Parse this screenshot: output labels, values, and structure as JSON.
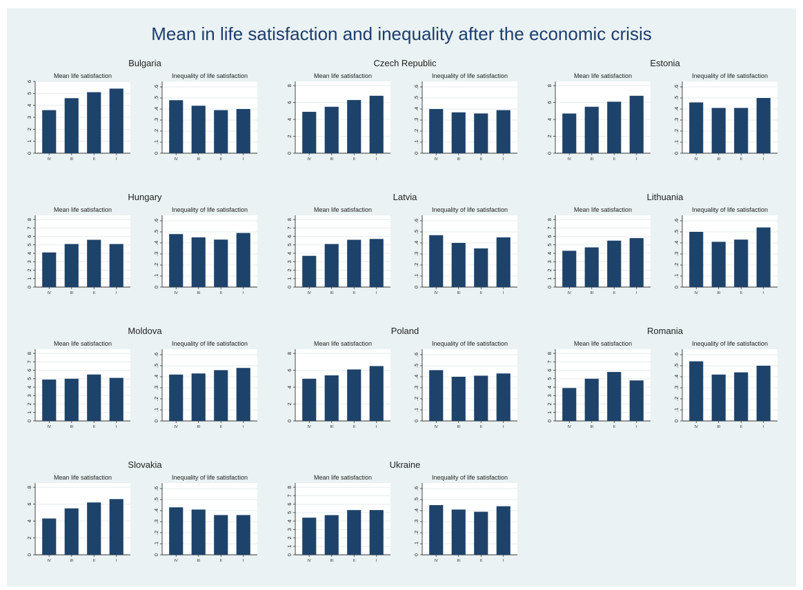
{
  "title": "Mean in life satisfaction and inequality after the economic crisis",
  "chart_data": {
    "type": "bar",
    "categories": [
      "IV",
      "III",
      "II",
      "I"
    ],
    "colors": {
      "bar": "#1e436b",
      "background": "#eaf2f3",
      "plot": "#ffffff",
      "title": "#1c3d6e"
    },
    "countries": [
      {
        "name": "Bulgaria",
        "mean": {
          "title": "Mean life satisfaction",
          "ylim": [
            0,
            6
          ],
          "yticks": [
            "0",
            "1",
            "2",
            "3",
            "4",
            "5",
            "6"
          ],
          "values": [
            3.6,
            4.6,
            5.1,
            5.4
          ]
        },
        "inequality": {
          "title": "Inequality of life satisfaction",
          "ylim": [
            0,
            0.65
          ],
          "yticks": [
            "0",
            ".1",
            ".2",
            ".3",
            ".4",
            ".5",
            ".6"
          ],
          "values": [
            0.48,
            0.43,
            0.39,
            0.4
          ]
        }
      },
      {
        "name": "Czech Republic",
        "mean": {
          "title": "Mean life satisfaction",
          "ylim": [
            0,
            8.5
          ],
          "yticks": [
            "0",
            "2",
            "4",
            "6",
            "8"
          ],
          "values": [
            4.9,
            5.5,
            6.3,
            6.8
          ]
        },
        "inequality": {
          "title": "Inequality of life satisfaction",
          "ylim": [
            0,
            0.65
          ],
          "yticks": [
            "0",
            ".1",
            ".2",
            ".3",
            ".4",
            ".5",
            ".6"
          ],
          "values": [
            0.4,
            0.37,
            0.36,
            0.39
          ]
        }
      },
      {
        "name": "Estonia",
        "mean": {
          "title": "Mean life satisfaction",
          "ylim": [
            0,
            8.5
          ],
          "yticks": [
            "0",
            "2",
            "4",
            "6",
            "8"
          ],
          "values": [
            4.7,
            5.5,
            6.1,
            6.8
          ]
        },
        "inequality": {
          "title": "Inequality of life satisfaction",
          "ylim": [
            0,
            0.65
          ],
          "yticks": [
            "0",
            ".1",
            ".2",
            ".3",
            ".4",
            ".5",
            ".6"
          ],
          "values": [
            0.46,
            0.41,
            0.41,
            0.5
          ]
        }
      },
      {
        "name": "Hungary",
        "mean": {
          "title": "Mean life satisfaction",
          "ylim": [
            0,
            8.5
          ],
          "yticks": [
            "0",
            "1",
            "2",
            "3",
            "4",
            "5",
            "6",
            "7",
            "8"
          ],
          "values": [
            4.1,
            5.1,
            5.6,
            5.1
          ]
        },
        "inequality": {
          "title": "Inequality of life satisfaction",
          "ylim": [
            0,
            0.65
          ],
          "yticks": [
            "0",
            ".1",
            ".2",
            ".3",
            ".4",
            ".5",
            ".6"
          ],
          "values": [
            0.48,
            0.45,
            0.43,
            0.49
          ]
        }
      },
      {
        "name": "Latvia",
        "mean": {
          "title": "Mean life satisfaction",
          "ylim": [
            0,
            8.5
          ],
          "yticks": [
            "0",
            "1",
            "2",
            "3",
            "4",
            "5",
            "6",
            "7",
            "8"
          ],
          "values": [
            3.7,
            5.1,
            5.6,
            5.7
          ]
        },
        "inequality": {
          "title": "Inequality of life satisfaction",
          "ylim": [
            0,
            0.65
          ],
          "yticks": [
            "0",
            ".1",
            ".2",
            ".3",
            ".4",
            ".5",
            ".6"
          ],
          "values": [
            0.47,
            0.4,
            0.35,
            0.45
          ]
        }
      },
      {
        "name": "Lithuania",
        "mean": {
          "title": "Mean life satisfaction",
          "ylim": [
            0,
            8.5
          ],
          "yticks": [
            "0",
            "1",
            "2",
            "3",
            "4",
            "5",
            "6",
            "7",
            "8"
          ],
          "values": [
            4.3,
            4.7,
            5.5,
            5.8
          ]
        },
        "inequality": {
          "title": "Inequality of life satisfaction",
          "ylim": [
            0,
            0.65
          ],
          "yticks": [
            "0",
            ".1",
            ".2",
            ".3",
            ".4",
            ".5",
            ".6"
          ],
          "values": [
            0.5,
            0.41,
            0.43,
            0.54
          ]
        }
      },
      {
        "name": "Moldova",
        "mean": {
          "title": "Mean life satisfaction",
          "ylim": [
            0,
            8.5
          ],
          "yticks": [
            "0",
            "1",
            "2",
            "3",
            "4",
            "5",
            "6",
            "7",
            "8"
          ],
          "values": [
            4.9,
            5.0,
            5.5,
            5.1
          ]
        },
        "inequality": {
          "title": "Inequality of life satisfaction",
          "ylim": [
            0,
            0.65
          ],
          "yticks": [
            "0",
            ".1",
            ".2",
            ".3",
            ".4",
            ".5",
            ".6"
          ],
          "values": [
            0.42,
            0.43,
            0.46,
            0.48
          ]
        }
      },
      {
        "name": "Poland",
        "mean": {
          "title": "Mean life satisfaction",
          "ylim": [
            0,
            8.5
          ],
          "yticks": [
            "0",
            "2",
            "4",
            "6",
            "8"
          ],
          "values": [
            5.0,
            5.4,
            6.1,
            6.5
          ]
        },
        "inequality": {
          "title": "Inequality of life satisfaction",
          "ylim": [
            0,
            0.65
          ],
          "yticks": [
            "0",
            ".1",
            ".2",
            ".3",
            ".4",
            ".5",
            ".6"
          ],
          "values": [
            0.46,
            0.4,
            0.41,
            0.43
          ]
        }
      },
      {
        "name": "Romania",
        "mean": {
          "title": "Mean life satisfaction",
          "ylim": [
            0,
            8.5
          ],
          "yticks": [
            "0",
            "1",
            "2",
            "3",
            "4",
            "5",
            "6",
            "7",
            "8"
          ],
          "values": [
            3.9,
            5.0,
            5.8,
            4.8
          ]
        },
        "inequality": {
          "title": "Inequality of life satisfaction",
          "ylim": [
            0,
            0.65
          ],
          "yticks": [
            "0",
            ".1",
            ".2",
            ".3",
            ".4",
            ".5",
            ".6"
          ],
          "values": [
            0.54,
            0.42,
            0.44,
            0.5
          ]
        }
      },
      {
        "name": "Slovakia",
        "mean": {
          "title": "Mean life satisfaction",
          "ylim": [
            0,
            8.5
          ],
          "yticks": [
            "0",
            "2",
            "4",
            "6",
            "8"
          ],
          "values": [
            4.3,
            5.5,
            6.2,
            6.6
          ]
        },
        "inequality": {
          "title": "Inequality  of life satisfaction",
          "ylim": [
            0,
            0.65
          ],
          "yticks": [
            "0",
            ".1",
            ".2",
            ".3",
            ".4",
            ".5",
            ".6"
          ],
          "values": [
            0.43,
            0.41,
            0.36,
            0.36
          ]
        }
      },
      {
        "name": "Ukraine",
        "mean": {
          "title": "Mean life satisfaction",
          "ylim": [
            0,
            8.5
          ],
          "yticks": [
            "0",
            "1",
            "2",
            "3",
            "4",
            "5",
            "6",
            "7",
            "8"
          ],
          "values": [
            4.4,
            4.7,
            5.3,
            5.3
          ]
        },
        "inequality": {
          "title": "Inequality of life satisfaction",
          "ylim": [
            0,
            0.65
          ],
          "yticks": [
            "0",
            ".1",
            ".2",
            ".3",
            ".4",
            ".5",
            ".6"
          ],
          "values": [
            0.45,
            0.41,
            0.39,
            0.44
          ]
        }
      }
    ]
  }
}
